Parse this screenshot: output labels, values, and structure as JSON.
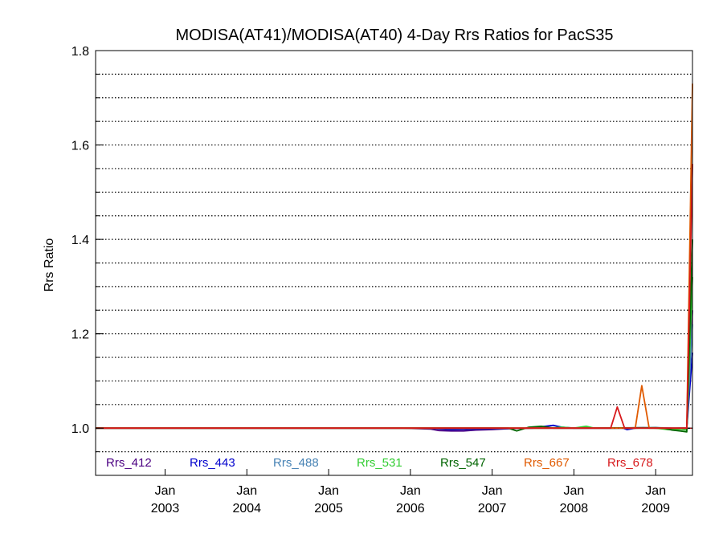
{
  "chart_data": {
    "type": "line",
    "title": "MODISA(AT41)/MODISA(AT40) 4-Day Rrs Ratios for PacS35",
    "ylabel": "Rrs Ratio",
    "xlabel": "",
    "xlim": [
      2002.15,
      2009.45
    ],
    "ylim": [
      0.9,
      1.8
    ],
    "y_ticks": [
      1.0,
      1.2,
      1.4,
      1.6,
      1.8
    ],
    "y_minor_step": 0.05,
    "grid": "horizontal dotted",
    "reference_line": 1.0,
    "x_ticks": [
      {
        "x": 2003.0,
        "month": "Jan",
        "year": "2003"
      },
      {
        "x": 2004.0,
        "month": "Jan",
        "year": "2004"
      },
      {
        "x": 2005.0,
        "month": "Jan",
        "year": "2005"
      },
      {
        "x": 2006.0,
        "month": "Jan",
        "year": "2006"
      },
      {
        "x": 2007.0,
        "month": "Jan",
        "year": "2007"
      },
      {
        "x": 2008.0,
        "month": "Jan",
        "year": "2008"
      },
      {
        "x": 2009.0,
        "month": "Jan",
        "year": "2009"
      }
    ],
    "legend_placement": "bottom inside plot",
    "series": [
      {
        "name": "Rrs_412",
        "color": "#4b0082",
        "points": [
          [
            2002.15,
            1.0
          ],
          [
            2005.9,
            1.0
          ],
          [
            2006.1,
            0.999
          ],
          [
            2006.25,
            0.998
          ],
          [
            2006.35,
            0.995
          ],
          [
            2006.5,
            0.994
          ],
          [
            2006.65,
            0.994
          ],
          [
            2006.8,
            0.996
          ],
          [
            2007.0,
            0.997
          ],
          [
            2007.2,
            0.999
          ],
          [
            2007.5,
            1.0
          ],
          [
            2008.0,
            1.0
          ],
          [
            2008.5,
            1.0
          ],
          [
            2008.85,
            1.001
          ],
          [
            2009.0,
            1.0
          ],
          [
            2009.15,
            0.999
          ],
          [
            2009.3,
            1.0
          ],
          [
            2009.38,
            1.0
          ],
          [
            2009.45,
            1.25
          ]
        ]
      },
      {
        "name": "Rrs_443",
        "color": "#0000cd",
        "points": [
          [
            2002.15,
            1.0
          ],
          [
            2006.2,
            1.0
          ],
          [
            2006.5,
            0.997
          ],
          [
            2006.8,
            0.998
          ],
          [
            2007.2,
            0.999
          ],
          [
            2007.5,
            1.0
          ],
          [
            2007.6,
            1.003
          ],
          [
            2007.75,
            1.006
          ],
          [
            2007.85,
            1.002
          ],
          [
            2008.0,
            1.0
          ],
          [
            2008.6,
            1.0
          ],
          [
            2008.65,
            0.997
          ],
          [
            2008.75,
            1.0
          ],
          [
            2009.0,
            1.001
          ],
          [
            2009.2,
            1.0
          ],
          [
            2009.38,
            1.0
          ],
          [
            2009.45,
            1.16
          ]
        ]
      },
      {
        "name": "Rrs_488",
        "color": "#4682b4",
        "points": [
          [
            2002.15,
            1.0
          ],
          [
            2009.1,
            1.0
          ],
          [
            2009.2,
            0.998
          ],
          [
            2009.3,
            1.0
          ],
          [
            2009.38,
            1.0
          ],
          [
            2009.45,
            1.22
          ]
        ]
      },
      {
        "name": "Rrs_531",
        "color": "#32cd32",
        "points": [
          [
            2002.15,
            1.0
          ],
          [
            2007.7,
            1.0
          ],
          [
            2007.85,
            1.002
          ],
          [
            2008.0,
            1.0
          ],
          [
            2008.15,
            1.004
          ],
          [
            2008.25,
            1.0
          ],
          [
            2009.0,
            1.0
          ],
          [
            2009.15,
            0.997
          ],
          [
            2009.3,
            0.998
          ],
          [
            2009.38,
            0.996
          ],
          [
            2009.45,
            1.32
          ]
        ]
      },
      {
        "name": "Rrs_547",
        "color": "#006400",
        "points": [
          [
            2002.15,
            1.0
          ],
          [
            2007.2,
            1.0
          ],
          [
            2007.3,
            0.994
          ],
          [
            2007.45,
            1.002
          ],
          [
            2007.6,
            1.004
          ],
          [
            2007.75,
            1.0
          ],
          [
            2008.0,
            1.0
          ],
          [
            2009.0,
            1.001
          ],
          [
            2009.1,
            1.0
          ],
          [
            2009.2,
            0.996
          ],
          [
            2009.3,
            0.994
          ],
          [
            2009.38,
            0.992
          ],
          [
            2009.45,
            1.4
          ]
        ]
      },
      {
        "name": "Rrs_667",
        "color": "#e05a00",
        "points": [
          [
            2002.15,
            1.0
          ],
          [
            2008.75,
            1.0
          ],
          [
            2008.83,
            1.09
          ],
          [
            2008.92,
            1.0
          ],
          [
            2009.0,
            1.0
          ],
          [
            2009.38,
            1.0
          ],
          [
            2009.45,
            1.73
          ]
        ]
      },
      {
        "name": "Rrs_678",
        "color": "#d7191c",
        "points": [
          [
            2002.15,
            1.0
          ],
          [
            2008.45,
            1.0
          ],
          [
            2008.53,
            1.045
          ],
          [
            2008.62,
            1.0
          ],
          [
            2009.0,
            1.0
          ],
          [
            2009.38,
            1.0
          ],
          [
            2009.45,
            1.56
          ]
        ]
      }
    ]
  }
}
